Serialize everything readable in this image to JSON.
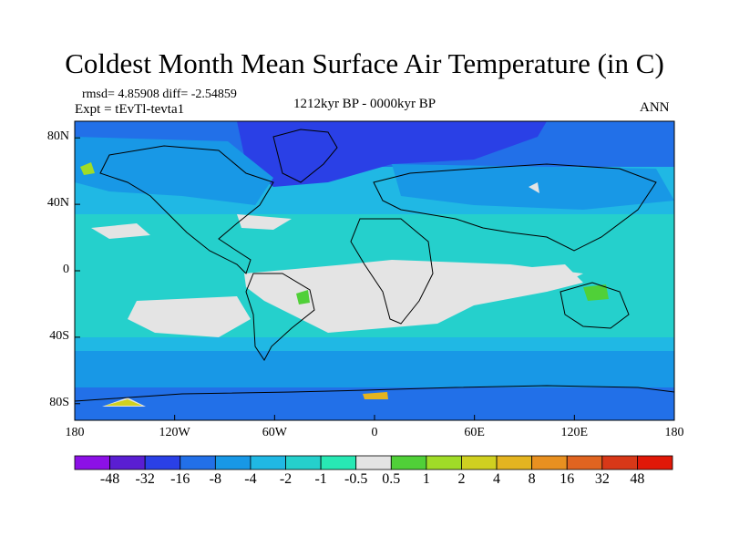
{
  "header": {
    "title": "Coldest Month Mean Surface Air Temperature (in C)",
    "stats": "rmsd= 4.85908  diff= -2.54859",
    "experiment": "Expt = tEvTl-tevta1",
    "period": "1212kyr BP - 0000kyr BP",
    "season": "ANN"
  },
  "axes": {
    "lat_ticks": [
      "80N",
      "40N",
      "0",
      "40S",
      "80S"
    ],
    "lon_ticks": [
      "180",
      "120W",
      "60W",
      "0",
      "60E",
      "120E",
      "180"
    ]
  },
  "colorbar": {
    "colors": [
      "#8c10e6",
      "#5a1ed2",
      "#2a40e6",
      "#2270e8",
      "#1898e6",
      "#20b8e4",
      "#25d0cc",
      "#28e8b4",
      "#e4e4e4",
      "#50d038",
      "#a0dc28",
      "#d0d020",
      "#e4b420",
      "#e89020",
      "#e06420",
      "#d83818",
      "#e01808"
    ],
    "labels": [
      "-48",
      "-32",
      "-16",
      "-8",
      "-4",
      "-2",
      "-1",
      "-0.5",
      "0.5",
      "1",
      "2",
      "4",
      "8",
      "16",
      "32",
      "48"
    ]
  },
  "map_colors": {
    "ocean_base": "#20b8e4",
    "tropics": "#25d0cc",
    "near_zero": "#e4e4e4",
    "cold": "#2270e8",
    "very_cold": "#2a40e6",
    "land_outline": "#000000"
  }
}
